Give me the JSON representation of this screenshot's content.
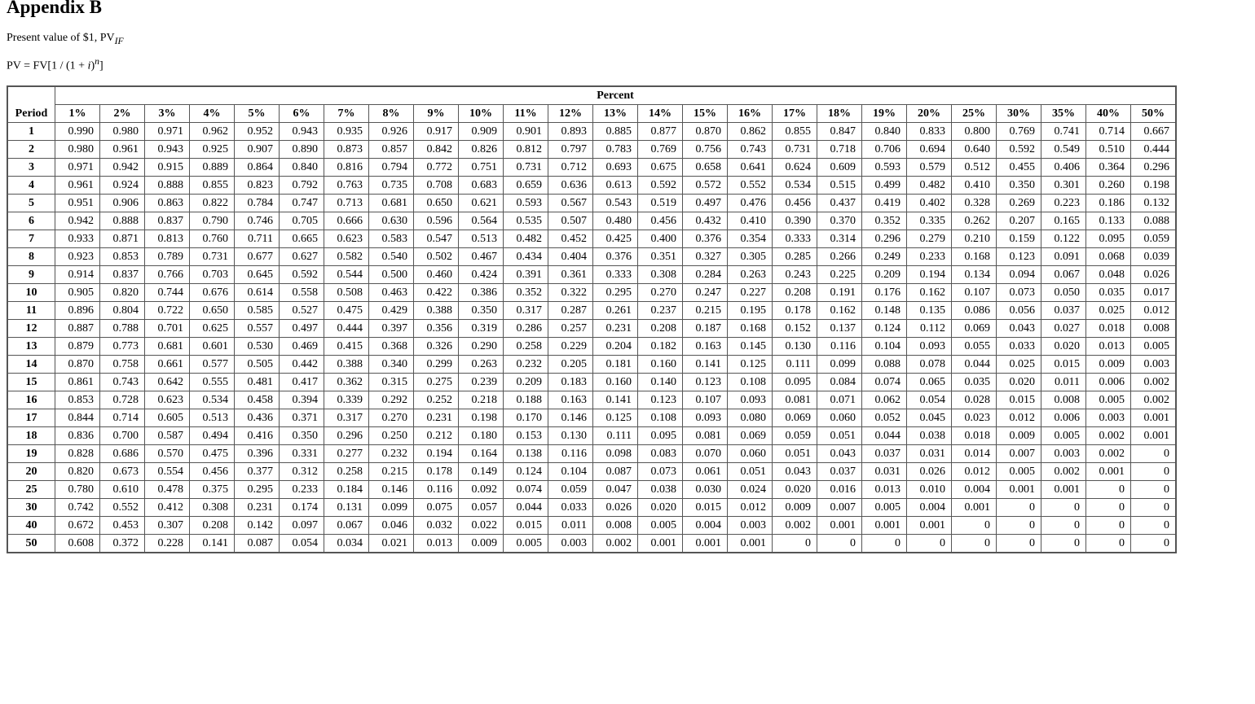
{
  "title": "Appendix B",
  "subtitle": {
    "text": "Present value of $1, PV",
    "subscript": "IF"
  },
  "formula": {
    "prefix": "PV = FV[1 / (1 + ",
    "i": "i",
    ")": ")",
    "n": "n",
    "suffix": "]"
  },
  "table": {
    "group_header": "Percent",
    "period_header": "Period",
    "columns": [
      "1%",
      "2%",
      "3%",
      "4%",
      "5%",
      "6%",
      "7%",
      "8%",
      "9%",
      "10%",
      "11%",
      "12%",
      "13%",
      "14%",
      "15%",
      "16%",
      "17%",
      "18%",
      "19%",
      "20%",
      "25%",
      "30%",
      "35%",
      "40%",
      "50%"
    ],
    "rows": [
      {
        "period": "1",
        "values": [
          "0.990",
          "0.980",
          "0.971",
          "0.962",
          "0.952",
          "0.943",
          "0.935",
          "0.926",
          "0.917",
          "0.909",
          "0.901",
          "0.893",
          "0.885",
          "0.877",
          "0.870",
          "0.862",
          "0.855",
          "0.847",
          "0.840",
          "0.833",
          "0.800",
          "0.769",
          "0.741",
          "0.714",
          "0.667"
        ]
      },
      {
        "period": "2",
        "values": [
          "0.980",
          "0.961",
          "0.943",
          "0.925",
          "0.907",
          "0.890",
          "0.873",
          "0.857",
          "0.842",
          "0.826",
          "0.812",
          "0.797",
          "0.783",
          "0.769",
          "0.756",
          "0.743",
          "0.731",
          "0.718",
          "0.706",
          "0.694",
          "0.640",
          "0.592",
          "0.549",
          "0.510",
          "0.444"
        ]
      },
      {
        "period": "3",
        "values": [
          "0.971",
          "0.942",
          "0.915",
          "0.889",
          "0.864",
          "0.840",
          "0.816",
          "0.794",
          "0.772",
          "0.751",
          "0.731",
          "0.712",
          "0.693",
          "0.675",
          "0.658",
          "0.641",
          "0.624",
          "0.609",
          "0.593",
          "0.579",
          "0.512",
          "0.455",
          "0.406",
          "0.364",
          "0.296"
        ]
      },
      {
        "period": "4",
        "values": [
          "0.961",
          "0.924",
          "0.888",
          "0.855",
          "0.823",
          "0.792",
          "0.763",
          "0.735",
          "0.708",
          "0.683",
          "0.659",
          "0.636",
          "0.613",
          "0.592",
          "0.572",
          "0.552",
          "0.534",
          "0.515",
          "0.499",
          "0.482",
          "0.410",
          "0.350",
          "0.301",
          "0.260",
          "0.198"
        ]
      },
      {
        "period": "5",
        "values": [
          "0.951",
          "0.906",
          "0.863",
          "0.822",
          "0.784",
          "0.747",
          "0.713",
          "0.681",
          "0.650",
          "0.621",
          "0.593",
          "0.567",
          "0.543",
          "0.519",
          "0.497",
          "0.476",
          "0.456",
          "0.437",
          "0.419",
          "0.402",
          "0.328",
          "0.269",
          "0.223",
          "0.186",
          "0.132"
        ]
      },
      {
        "period": "6",
        "values": [
          "0.942",
          "0.888",
          "0.837",
          "0.790",
          "0.746",
          "0.705",
          "0.666",
          "0.630",
          "0.596",
          "0.564",
          "0.535",
          "0.507",
          "0.480",
          "0.456",
          "0.432",
          "0.410",
          "0.390",
          "0.370",
          "0.352",
          "0.335",
          "0.262",
          "0.207",
          "0.165",
          "0.133",
          "0.088"
        ]
      },
      {
        "period": "7",
        "values": [
          "0.933",
          "0.871",
          "0.813",
          "0.760",
          "0.711",
          "0.665",
          "0.623",
          "0.583",
          "0.547",
          "0.513",
          "0.482",
          "0.452",
          "0.425",
          "0.400",
          "0.376",
          "0.354",
          "0.333",
          "0.314",
          "0.296",
          "0.279",
          "0.210",
          "0.159",
          "0.122",
          "0.095",
          "0.059"
        ]
      },
      {
        "period": "8",
        "values": [
          "0.923",
          "0.853",
          "0.789",
          "0.731",
          "0.677",
          "0.627",
          "0.582",
          "0.540",
          "0.502",
          "0.467",
          "0.434",
          "0.404",
          "0.376",
          "0.351",
          "0.327",
          "0.305",
          "0.285",
          "0.266",
          "0.249",
          "0.233",
          "0.168",
          "0.123",
          "0.091",
          "0.068",
          "0.039"
        ]
      },
      {
        "period": "9",
        "values": [
          "0.914",
          "0.837",
          "0.766",
          "0.703",
          "0.645",
          "0.592",
          "0.544",
          "0.500",
          "0.460",
          "0.424",
          "0.391",
          "0.361",
          "0.333",
          "0.308",
          "0.284",
          "0.263",
          "0.243",
          "0.225",
          "0.209",
          "0.194",
          "0.134",
          "0.094",
          "0.067",
          "0.048",
          "0.026"
        ]
      },
      {
        "period": "10",
        "values": [
          "0.905",
          "0.820",
          "0.744",
          "0.676",
          "0.614",
          "0.558",
          "0.508",
          "0.463",
          "0.422",
          "0.386",
          "0.352",
          "0.322",
          "0.295",
          "0.270",
          "0.247",
          "0.227",
          "0.208",
          "0.191",
          "0.176",
          "0.162",
          "0.107",
          "0.073",
          "0.050",
          "0.035",
          "0.017"
        ]
      },
      {
        "period": "11",
        "values": [
          "0.896",
          "0.804",
          "0.722",
          "0.650",
          "0.585",
          "0.527",
          "0.475",
          "0.429",
          "0.388",
          "0.350",
          "0.317",
          "0.287",
          "0.261",
          "0.237",
          "0.215",
          "0.195",
          "0.178",
          "0.162",
          "0.148",
          "0.135",
          "0.086",
          "0.056",
          "0.037",
          "0.025",
          "0.012"
        ]
      },
      {
        "period": "12",
        "values": [
          "0.887",
          "0.788",
          "0.701",
          "0.625",
          "0.557",
          "0.497",
          "0.444",
          "0.397",
          "0.356",
          "0.319",
          "0.286",
          "0.257",
          "0.231",
          "0.208",
          "0.187",
          "0.168",
          "0.152",
          "0.137",
          "0.124",
          "0.112",
          "0.069",
          "0.043",
          "0.027",
          "0.018",
          "0.008"
        ]
      },
      {
        "period": "13",
        "values": [
          "0.879",
          "0.773",
          "0.681",
          "0.601",
          "0.530",
          "0.469",
          "0.415",
          "0.368",
          "0.326",
          "0.290",
          "0.258",
          "0.229",
          "0.204",
          "0.182",
          "0.163",
          "0.145",
          "0.130",
          "0.116",
          "0.104",
          "0.093",
          "0.055",
          "0.033",
          "0.020",
          "0.013",
          "0.005"
        ]
      },
      {
        "period": "14",
        "values": [
          "0.870",
          "0.758",
          "0.661",
          "0.577",
          "0.505",
          "0.442",
          "0.388",
          "0.340",
          "0.299",
          "0.263",
          "0.232",
          "0.205",
          "0.181",
          "0.160",
          "0.141",
          "0.125",
          "0.111",
          "0.099",
          "0.088",
          "0.078",
          "0.044",
          "0.025",
          "0.015",
          "0.009",
          "0.003"
        ]
      },
      {
        "period": "15",
        "values": [
          "0.861",
          "0.743",
          "0.642",
          "0.555",
          "0.481",
          "0.417",
          "0.362",
          "0.315",
          "0.275",
          "0.239",
          "0.209",
          "0.183",
          "0.160",
          "0.140",
          "0.123",
          "0.108",
          "0.095",
          "0.084",
          "0.074",
          "0.065",
          "0.035",
          "0.020",
          "0.011",
          "0.006",
          "0.002"
        ]
      },
      {
        "period": "16",
        "values": [
          "0.853",
          "0.728",
          "0.623",
          "0.534",
          "0.458",
          "0.394",
          "0.339",
          "0.292",
          "0.252",
          "0.218",
          "0.188",
          "0.163",
          "0.141",
          "0.123",
          "0.107",
          "0.093",
          "0.081",
          "0.071",
          "0.062",
          "0.054",
          "0.028",
          "0.015",
          "0.008",
          "0.005",
          "0.002"
        ]
      },
      {
        "period": "17",
        "values": [
          "0.844",
          "0.714",
          "0.605",
          "0.513",
          "0.436",
          "0.371",
          "0.317",
          "0.270",
          "0.231",
          "0.198",
          "0.170",
          "0.146",
          "0.125",
          "0.108",
          "0.093",
          "0.080",
          "0.069",
          "0.060",
          "0.052",
          "0.045",
          "0.023",
          "0.012",
          "0.006",
          "0.003",
          "0.001"
        ]
      },
      {
        "period": "18",
        "values": [
          "0.836",
          "0.700",
          "0.587",
          "0.494",
          "0.416",
          "0.350",
          "0.296",
          "0.250",
          "0.212",
          "0.180",
          "0.153",
          "0.130",
          "0.111",
          "0.095",
          "0.081",
          "0.069",
          "0.059",
          "0.051",
          "0.044",
          "0.038",
          "0.018",
          "0.009",
          "0.005",
          "0.002",
          "0.001"
        ]
      },
      {
        "period": "19",
        "values": [
          "0.828",
          "0.686",
          "0.570",
          "0.475",
          "0.396",
          "0.331",
          "0.277",
          "0.232",
          "0.194",
          "0.164",
          "0.138",
          "0.116",
          "0.098",
          "0.083",
          "0.070",
          "0.060",
          "0.051",
          "0.043",
          "0.037",
          "0.031",
          "0.014",
          "0.007",
          "0.003",
          "0.002",
          "0"
        ]
      },
      {
        "period": "20",
        "values": [
          "0.820",
          "0.673",
          "0.554",
          "0.456",
          "0.377",
          "0.312",
          "0.258",
          "0.215",
          "0.178",
          "0.149",
          "0.124",
          "0.104",
          "0.087",
          "0.073",
          "0.061",
          "0.051",
          "0.043",
          "0.037",
          "0.031",
          "0.026",
          "0.012",
          "0.005",
          "0.002",
          "0.001",
          "0"
        ]
      },
      {
        "period": "25",
        "values": [
          "0.780",
          "0.610",
          "0.478",
          "0.375",
          "0.295",
          "0.233",
          "0.184",
          "0.146",
          "0.116",
          "0.092",
          "0.074",
          "0.059",
          "0.047",
          "0.038",
          "0.030",
          "0.024",
          "0.020",
          "0.016",
          "0.013",
          "0.010",
          "0.004",
          "0.001",
          "0.001",
          "0",
          "0"
        ]
      },
      {
        "period": "30",
        "values": [
          "0.742",
          "0.552",
          "0.412",
          "0.308",
          "0.231",
          "0.174",
          "0.131",
          "0.099",
          "0.075",
          "0.057",
          "0.044",
          "0.033",
          "0.026",
          "0.020",
          "0.015",
          "0.012",
          "0.009",
          "0.007",
          "0.005",
          "0.004",
          "0.001",
          "0",
          "0",
          "0",
          "0"
        ]
      },
      {
        "period": "40",
        "values": [
          "0.672",
          "0.453",
          "0.307",
          "0.208",
          "0.142",
          "0.097",
          "0.067",
          "0.046",
          "0.032",
          "0.022",
          "0.015",
          "0.011",
          "0.008",
          "0.005",
          "0.004",
          "0.003",
          "0.002",
          "0.001",
          "0.001",
          "0.001",
          "0",
          "0",
          "0",
          "0",
          "0"
        ]
      },
      {
        "period": "50",
        "values": [
          "0.608",
          "0.372",
          "0.228",
          "0.141",
          "0.087",
          "0.054",
          "0.034",
          "0.021",
          "0.013",
          "0.009",
          "0.005",
          "0.003",
          "0.002",
          "0.001",
          "0.001",
          "0.001",
          "0",
          "0",
          "0",
          "0",
          "0",
          "0",
          "0",
          "0",
          "0"
        ]
      }
    ]
  }
}
